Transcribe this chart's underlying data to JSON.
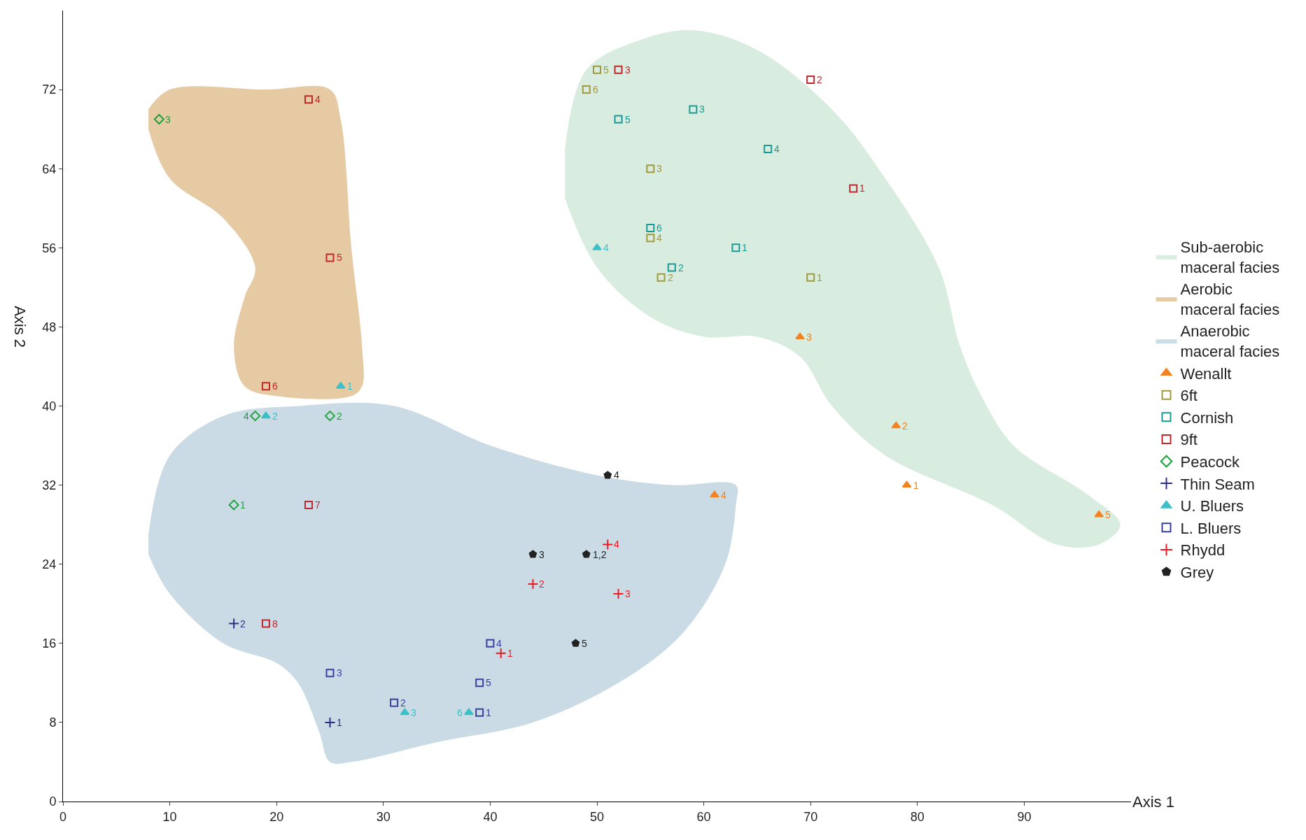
{
  "chart_data": {
    "type": "scatter",
    "xlabel": "Axis 1",
    "ylabel": "Axis 2",
    "xlim": [
      0,
      100
    ],
    "xticks": [
      0,
      10,
      20,
      30,
      40,
      50,
      60,
      70,
      80,
      90
    ],
    "ylim": [
      0,
      80
    ],
    "yticks": [
      0,
      8,
      16,
      24,
      32,
      40,
      48,
      56,
      64,
      72
    ],
    "grid": false,
    "legend": "right",
    "series": [
      {
        "name": "Sub-aerobic\nmaceral facies",
        "type": "area",
        "color": "#cfe8d8",
        "x": [
          47,
          49,
          54,
          59,
          65,
          72,
          77,
          82,
          84,
          86,
          89,
          96,
          99,
          97,
          93,
          87,
          77,
          72,
          69,
          65,
          60,
          55,
          50,
          47
        ],
        "values": [
          66,
          74,
          77,
          78,
          76,
          70,
          63,
          54,
          46,
          41,
          36,
          31,
          28,
          26,
          26,
          30,
          35,
          40,
          45,
          47,
          47,
          49,
          54,
          61
        ]
      },
      {
        "name": "Aerobic\nmaceral facies",
        "type": "area",
        "color": "#e0be8e",
        "x": [
          8,
          10,
          19,
          25,
          26,
          27,
          28,
          28,
          27,
          20,
          17,
          16,
          17,
          18,
          15,
          10,
          8
        ],
        "values": [
          70,
          72,
          72,
          72,
          69,
          56,
          46,
          42,
          41,
          41,
          42,
          46,
          51,
          54,
          59,
          63,
          68
        ]
      },
      {
        "name": "Anaerobic\nmaceral facies",
        "type": "area",
        "color": "#bdd3df",
        "x": [
          8,
          10,
          15,
          22,
          31,
          40,
          50,
          57,
          63,
          63,
          62,
          58,
          52,
          44,
          35,
          27,
          25,
          24,
          22,
          20,
          15,
          10,
          8
        ],
        "values": [
          27,
          35,
          39,
          40,
          40,
          36,
          33,
          32,
          32,
          30,
          24,
          17,
          12,
          8,
          6,
          4,
          4,
          7,
          12,
          14,
          16,
          21,
          25
        ]
      },
      {
        "name": "Wenallt",
        "color": "#f58220",
        "marker": "triangle",
        "x": [
          79,
          78,
          69,
          61,
          97
        ],
        "values": [
          32,
          38,
          47,
          31,
          29
        ]
      },
      {
        "name": "6ft",
        "color": "#a09a3c",
        "marker": "square",
        "x": [
          70,
          56,
          55,
          55,
          50,
          49
        ],
        "values": [
          53,
          53,
          64,
          57,
          74,
          72
        ]
      },
      {
        "name": "Cornish",
        "color": "#1a9a96",
        "marker": "square",
        "x": [
          63,
          57,
          59,
          66,
          52,
          55
        ],
        "values": [
          56,
          54,
          70,
          66,
          69,
          58
        ]
      },
      {
        "name": "9ft",
        "color": "#c1272d",
        "marker": "square",
        "x": [
          74,
          70,
          52,
          23,
          25,
          19,
          23,
          19
        ],
        "values": [
          62,
          73,
          74,
          71,
          55,
          42,
          30,
          18
        ]
      },
      {
        "name": "Peacock",
        "color": "#1fa23a",
        "marker": "diamond",
        "x": [
          16,
          25,
          9,
          18
        ],
        "values": [
          30,
          39,
          69,
          39
        ]
      },
      {
        "name": "Thin Seam",
        "color": "#2b2e83",
        "marker": "cross",
        "x": [
          25,
          16
        ],
        "values": [
          8,
          18
        ]
      },
      {
        "name": "U. Bluers",
        "color": "#3cc0c8",
        "marker": "triangle",
        "x": [
          26,
          19,
          32,
          50,
          38
        ],
        "values": [
          42,
          39,
          9,
          56,
          9
        ]
      },
      {
        "name": "L. Bluers",
        "color": "#3a3fa0",
        "marker": "square",
        "x": [
          39,
          31,
          25,
          40,
          39
        ],
        "values": [
          9,
          10,
          13,
          16,
          12
        ]
      },
      {
        "name": "Rhydd",
        "color": "#ed1c24",
        "marker": "cross",
        "x": [
          41,
          44,
          52,
          51
        ],
        "values": [
          15,
          22,
          21,
          26
        ]
      },
      {
        "name": "Grey",
        "color": "#222222",
        "marker": "circle",
        "x": [
          49,
          44,
          51,
          48
        ],
        "values": [
          25,
          25,
          33,
          16
        ]
      }
    ],
    "annotations": [
      {
        "text": "1",
        "x": 79,
        "y": 32
      },
      {
        "text": "2",
        "x": 78,
        "y": 38
      },
      {
        "text": "3",
        "x": 69,
        "y": 47
      },
      {
        "text": "4",
        "x": 61,
        "y": 31
      },
      {
        "text": "5",
        "x": 97,
        "y": 29
      },
      {
        "text": "1",
        "x": 70,
        "y": 53
      },
      {
        "text": "2",
        "x": 56,
        "y": 53
      },
      {
        "text": "3",
        "x": 55,
        "y": 64
      },
      {
        "text": "4",
        "x": 55,
        "y": 57
      },
      {
        "text": "5",
        "x": 50,
        "y": 74
      },
      {
        "text": "6",
        "x": 49,
        "y": 72
      },
      {
        "text": "1",
        "x": 63,
        "y": 56
      },
      {
        "text": "2",
        "x": 57,
        "y": 54
      },
      {
        "text": "3",
        "x": 59,
        "y": 70
      },
      {
        "text": "4",
        "x": 66,
        "y": 66
      },
      {
        "text": "5",
        "x": 52,
        "y": 69
      },
      {
        "text": "6",
        "x": 55,
        "y": 58
      },
      {
        "text": "1",
        "x": 74,
        "y": 62
      },
      {
        "text": "2",
        "x": 70,
        "y": 73
      },
      {
        "text": "3",
        "x": 52,
        "y": 74
      },
      {
        "text": "4",
        "x": 23,
        "y": 71
      },
      {
        "text": "5",
        "x": 25,
        "y": 55
      },
      {
        "text": "6",
        "x": 19,
        "y": 42
      },
      {
        "text": "7",
        "x": 23,
        "y": 30
      },
      {
        "text": "8",
        "x": 19,
        "y": 18
      },
      {
        "text": "1",
        "x": 16,
        "y": 30
      },
      {
        "text": "2",
        "x": 25,
        "y": 39
      },
      {
        "text": "3",
        "x": 9,
        "y": 69
      },
      {
        "text": "4",
        "x": 18,
        "y": 39
      },
      {
        "text": "1",
        "x": 25,
        "y": 8
      },
      {
        "text": "2",
        "x": 16,
        "y": 18
      },
      {
        "text": "1",
        "x": 26,
        "y": 42
      },
      {
        "text": "2",
        "x": 19,
        "y": 39
      },
      {
        "text": "3",
        "x": 32,
        "y": 9
      },
      {
        "text": "4",
        "x": 50,
        "y": 56
      },
      {
        "text": "6",
        "x": 38,
        "y": 9
      },
      {
        "text": "1",
        "x": 39,
        "y": 9
      },
      {
        "text": "2",
        "x": 31,
        "y": 10
      },
      {
        "text": "3",
        "x": 25,
        "y": 13
      },
      {
        "text": "4",
        "x": 40,
        "y": 16
      },
      {
        "text": "5",
        "x": 39,
        "y": 12
      },
      {
        "text": "1",
        "x": 41,
        "y": 15
      },
      {
        "text": "2",
        "x": 44,
        "y": 22
      },
      {
        "text": "3",
        "x": 52,
        "y": 21
      },
      {
        "text": "4",
        "x": 51,
        "y": 26
      },
      {
        "text": "1,2",
        "x": 49,
        "y": 25
      },
      {
        "text": "3",
        "x": 44,
        "y": 25
      },
      {
        "text": "4",
        "x": 51,
        "y": 33
      },
      {
        "text": "5",
        "x": 48,
        "y": 16
      }
    ]
  }
}
